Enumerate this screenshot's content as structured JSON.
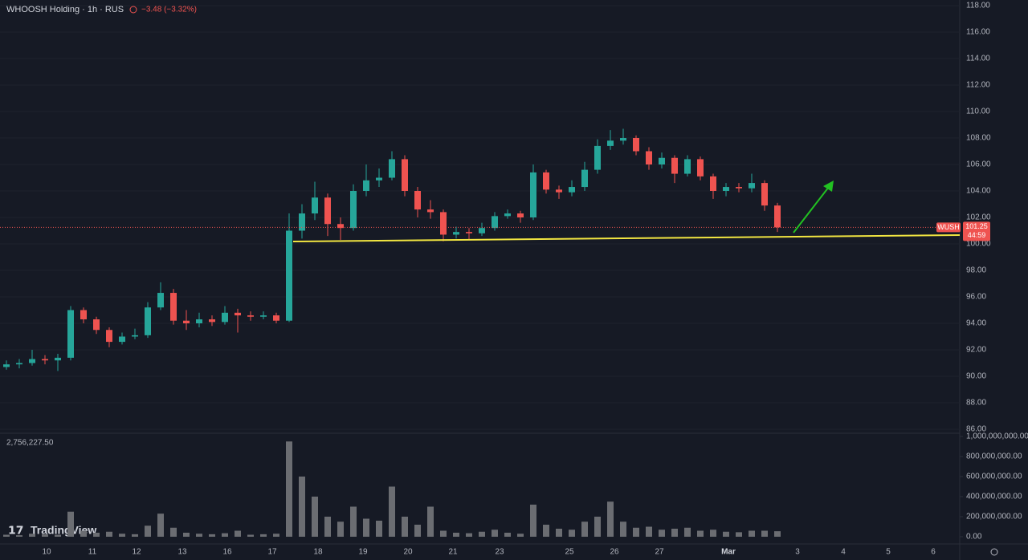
{
  "chart_data": {
    "type": "candlestick",
    "title": "WHOOSH Holding · 1h · RUS",
    "change": "−3.48 (−3.32%)",
    "volume_label": "2,756,227.50",
    "symbol": "WUSH",
    "countdown": "44:59",
    "brand": "TradingView",
    "up_color": "#26a69a",
    "down_color": "#ef5350",
    "volume_color": "#6b6d72",
    "x_labels": [
      "10",
      "11",
      "12",
      "13",
      "16",
      "17",
      "18",
      "19",
      "20",
      "21",
      "23",
      "25",
      "26",
      "27",
      "Mar",
      "3",
      "4",
      "5",
      "6"
    ],
    "open": [
      90.7,
      90.9,
      91.0,
      91.3,
      91.2,
      91.4,
      95.0,
      94.3,
      93.5,
      92.6,
      93.0,
      93.1,
      95.2,
      96.3,
      94.2,
      94.0,
      94.3,
      94.1,
      94.8,
      94.6,
      94.5,
      94.6,
      94.2,
      101.0,
      102.3,
      103.5,
      101.5,
      101.2,
      104.0,
      104.8,
      105.0,
      106.4,
      104.0,
      102.6,
      102.4,
      100.7,
      100.9,
      100.8,
      101.2,
      102.1,
      102.3,
      102.0,
      105.4,
      104.1,
      103.9,
      104.3,
      105.6,
      107.4,
      107.8,
      108.0,
      107.0,
      106.0,
      106.5,
      105.3,
      106.4,
      105.1,
      104.0,
      104.3,
      104.2,
      104.6,
      102.9
    ],
    "high": [
      91.2,
      91.3,
      92.0,
      91.6,
      91.7,
      95.3,
      95.2,
      94.5,
      93.7,
      93.3,
      93.6,
      95.6,
      97.1,
      96.6,
      95.0,
      94.8,
      94.6,
      95.3,
      95.1,
      94.9,
      94.9,
      94.8,
      102.3,
      103.0,
      104.7,
      103.8,
      102.0,
      104.5,
      106.0,
      105.7,
      107.0,
      106.7,
      104.3,
      103.3,
      102.6,
      101.3,
      101.2,
      101.6,
      102.4,
      102.6,
      102.5,
      106.0,
      105.6,
      104.4,
      104.8,
      106.2,
      107.9,
      108.6,
      108.7,
      108.2,
      107.3,
      106.9,
      106.7,
      106.7,
      106.6,
      105.3,
      104.6,
      104.6,
      105.3,
      104.8,
      103.1
    ],
    "low": [
      90.5,
      90.6,
      90.8,
      90.9,
      90.4,
      91.2,
      94.0,
      93.2,
      92.2,
      92.4,
      92.8,
      92.9,
      95.0,
      93.9,
      93.5,
      93.7,
      93.8,
      93.9,
      93.3,
      94.2,
      94.3,
      94.0,
      94.1,
      100.4,
      101.8,
      100.6,
      100.3,
      101.0,
      103.6,
      104.3,
      104.8,
      103.6,
      102.0,
      101.9,
      100.2,
      100.4,
      100.3,
      100.6,
      101.0,
      101.9,
      101.6,
      101.8,
      103.8,
      103.4,
      103.6,
      104.0,
      105.3,
      107.1,
      107.5,
      106.7,
      105.6,
      105.7,
      104.6,
      105.1,
      104.8,
      103.4,
      103.6,
      103.9,
      103.9,
      102.5,
      100.9
    ],
    "close": [
      90.9,
      91.0,
      91.3,
      91.2,
      91.4,
      95.0,
      94.3,
      93.5,
      92.6,
      93.0,
      93.1,
      95.2,
      96.3,
      94.2,
      94.0,
      94.3,
      94.1,
      94.8,
      94.6,
      94.5,
      94.6,
      94.2,
      101.0,
      102.3,
      103.5,
      101.5,
      101.2,
      104.0,
      104.8,
      105.0,
      106.4,
      104.0,
      102.6,
      102.4,
      100.7,
      100.9,
      100.8,
      101.2,
      102.1,
      102.3,
      102.0,
      105.4,
      104.1,
      103.9,
      104.3,
      105.6,
      107.4,
      107.8,
      108.0,
      107.0,
      106.0,
      106.5,
      105.3,
      106.4,
      105.1,
      104.0,
      104.3,
      104.2,
      104.6,
      102.9,
      101.25
    ],
    "volume": [
      20000000,
      15000000,
      30000000,
      25000000,
      20000000,
      250000000,
      60000000,
      40000000,
      50000000,
      30000000,
      25000000,
      110000000,
      230000000,
      90000000,
      40000000,
      30000000,
      25000000,
      35000000,
      60000000,
      20000000,
      25000000,
      30000000,
      950000000,
      600000000,
      400000000,
      200000000,
      150000000,
      300000000,
      180000000,
      160000000,
      500000000,
      200000000,
      120000000,
      300000000,
      60000000,
      40000000,
      35000000,
      50000000,
      70000000,
      40000000,
      30000000,
      320000000,
      120000000,
      80000000,
      70000000,
      150000000,
      200000000,
      350000000,
      150000000,
      90000000,
      100000000,
      70000000,
      80000000,
      90000000,
      60000000,
      70000000,
      50000000,
      45000000,
      60000000,
      60000000,
      55000000
    ],
    "ylim": [
      86,
      118
    ],
    "yticks": [
      {
        "value": 86,
        "label": "86.00"
      },
      {
        "value": 88,
        "label": "88.00"
      },
      {
        "value": 90,
        "label": "90.00"
      },
      {
        "value": 92,
        "label": "92.00"
      },
      {
        "value": 94,
        "label": "94.00"
      },
      {
        "value": 96,
        "label": "96.00"
      },
      {
        "value": 98,
        "label": "98.00"
      },
      {
        "value": 100,
        "label": "100.00"
      },
      {
        "value": 102,
        "label": "102.00"
      },
      {
        "value": 104,
        "label": "104.00"
      },
      {
        "value": 106,
        "label": "106.00"
      },
      {
        "value": 108,
        "label": "108.00"
      },
      {
        "value": 110,
        "label": "110.00"
      },
      {
        "value": 112,
        "label": "112.00"
      },
      {
        "value": 114,
        "label": "114.00"
      },
      {
        "value": 116,
        "label": "116.00"
      },
      {
        "value": 118,
        "label": "118.00"
      }
    ],
    "y2lim": [
      0,
      1000000000
    ],
    "y2ticks": [
      {
        "value": 0,
        "label": "0.00"
      },
      {
        "value": 200000000,
        "label": "200,000,000.00"
      },
      {
        "value": 400000000,
        "label": "400,000,000.00"
      },
      {
        "value": 600000000,
        "label": "600,000,000.00"
      },
      {
        "value": 800000000,
        "label": "800,000,000.00"
      },
      {
        "value": 1000000000,
        "label": "1,000,000,000.00"
      }
    ]
  }
}
